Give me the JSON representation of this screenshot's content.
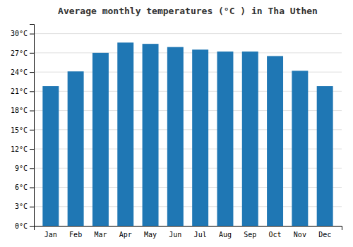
{
  "chart_data": {
    "type": "bar",
    "title": "Average monthly temperatures (°C ) in Tha Uthen",
    "categories": [
      "Jan",
      "Feb",
      "Mar",
      "Apr",
      "May",
      "Jun",
      "Jul",
      "Aug",
      "Sep",
      "Oct",
      "Nov",
      "Dec"
    ],
    "values": [
      21.8,
      24.1,
      27.0,
      28.6,
      28.4,
      27.9,
      27.5,
      27.2,
      27.2,
      26.5,
      24.2,
      21.8
    ],
    "ylim": [
      0,
      31.5
    ],
    "yticks": [
      {
        "value": 0,
        "label": "0°C"
      },
      {
        "value": 3,
        "label": "3°C"
      },
      {
        "value": 6,
        "label": "6°C"
      },
      {
        "value": 9,
        "label": "9°C"
      },
      {
        "value": 12,
        "label": "12°C"
      },
      {
        "value": 15,
        "label": "15°C"
      },
      {
        "value": 18,
        "label": "18°C"
      },
      {
        "value": 21,
        "label": "21°C"
      },
      {
        "value": 24,
        "label": "24°C"
      },
      {
        "value": 27,
        "label": "27°C"
      },
      {
        "value": 30,
        "label": "30°C"
      }
    ],
    "grid": true
  }
}
